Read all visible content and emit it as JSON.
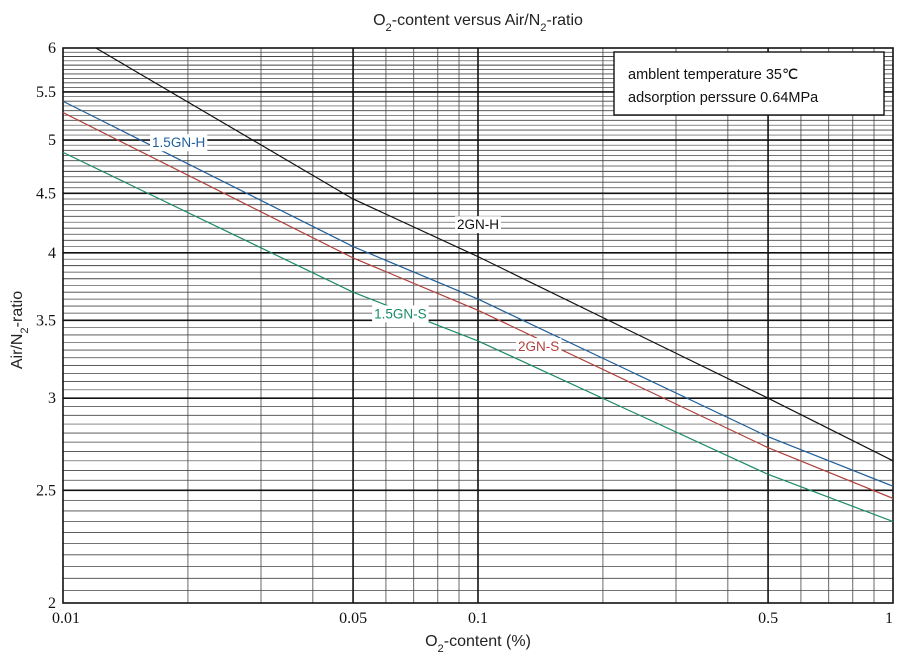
{
  "chart_data": {
    "type": "line",
    "title": "O2-content versus Air/N2-ratio",
    "xlabel": "O2-content (%)",
    "ylabel": "Air/N2-ratio",
    "x_scale": "log",
    "y_scale": "log",
    "xlim": [
      0.01,
      1
    ],
    "ylim": [
      2,
      6
    ],
    "x_ticks": [
      0.01,
      0.05,
      0.1,
      0.5,
      1
    ],
    "x_tick_labels": [
      "0.01",
      "0.05",
      "0.1",
      "0.5",
      "1"
    ],
    "y_ticks": [
      2,
      2.5,
      3,
      3.5,
      4,
      4.5,
      5,
      5.5,
      6
    ],
    "y_tick_labels": [
      "2",
      "2.5",
      "3",
      "3.5",
      "4",
      "4.5",
      "5",
      "5.5",
      "6"
    ],
    "grid": true,
    "annotation": {
      "line1": "amblent temperature 35℃",
      "line2": "adsorption perssure  0.64MPa"
    },
    "series": [
      {
        "name": "2GN-H",
        "color": "#111111",
        "x": [
          0.012,
          0.05,
          0.1,
          0.5,
          1
        ],
        "y": [
          6.0,
          4.45,
          3.97,
          3.0,
          2.65
        ]
      },
      {
        "name": "1.5GN-H",
        "color": "#1f5f9a",
        "x": [
          0.01,
          0.05,
          0.1,
          0.5,
          1
        ],
        "y": [
          5.4,
          4.05,
          3.65,
          2.78,
          2.52
        ]
      },
      {
        "name": "2GN-S",
        "color": "#b0403c",
        "x": [
          0.01,
          0.05,
          0.1,
          0.5,
          1
        ],
        "y": [
          5.28,
          3.96,
          3.57,
          2.72,
          2.46
        ]
      },
      {
        "name": "1.5GN-S",
        "color": "#1a8a68",
        "x": [
          0.01,
          0.05,
          0.1,
          0.5,
          1
        ],
        "y": [
          4.88,
          3.7,
          3.36,
          2.58,
          2.35
        ]
      }
    ]
  }
}
